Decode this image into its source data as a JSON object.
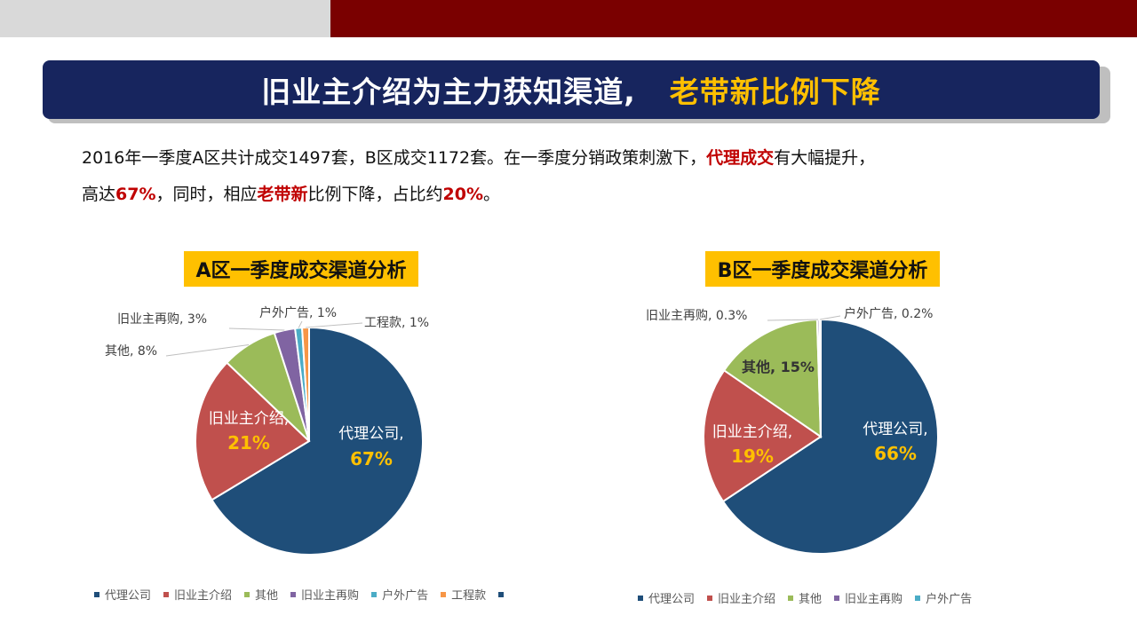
{
  "header": {
    "title_main": "旧业主介绍为主力获知渠道,",
    "title_accent": "老带新比例下降"
  },
  "intro": {
    "line1_pre": "2016年一季度A区共计成交1497套，B区成交1172套。在一季度分销政策刺激下，",
    "line1_hl": "代理成交",
    "line1_post": "有大幅提升，",
    "line2_a": "高达",
    "line2_hl1": "67%",
    "line2_b": "，同时，相应",
    "line2_hl2": "老带新",
    "line2_c": "比例下降，占比约",
    "line2_hl3": "20%",
    "line2_d": "。"
  },
  "colors": {
    "代理公司": "#1f4e79",
    "旧业主介绍": "#c0504d",
    "其他": "#9bbb59",
    "旧业主再购": "#8064a2",
    "户外广告": "#4bacc6",
    "工程款": "#f79646"
  },
  "chart_data": [
    {
      "type": "pie",
      "title": "A区一季度成交渠道分析",
      "slices": [
        {
          "name": "代理公司",
          "value": 67,
          "label_name": "代理公司,",
          "label_value": "67%"
        },
        {
          "name": "旧业主介绍",
          "value": 21,
          "label_name": "旧业主介绍,",
          "label_value": "21%"
        },
        {
          "name": "其他",
          "value": 8,
          "label": "其他, 8%"
        },
        {
          "name": "旧业主再购",
          "value": 3,
          "label": "旧业主再购, 3%"
        },
        {
          "name": "户外广告",
          "value": 1,
          "label": "户外广告, 1%"
        },
        {
          "name": "工程款",
          "value": 1,
          "label": "工程款, 1%"
        }
      ],
      "legend": [
        "代理公司",
        "旧业主介绍",
        "其他",
        "旧业主再购",
        "户外广告",
        "工程款",
        ""
      ]
    },
    {
      "type": "pie",
      "title": "B区一季度成交渠道分析",
      "slices": [
        {
          "name": "代理公司",
          "value": 66,
          "label_name": "代理公司,",
          "label_value": "66%"
        },
        {
          "name": "旧业主介绍",
          "value": 19,
          "label_name": "旧业主介绍,",
          "label_value": "19%"
        },
        {
          "name": "其他",
          "value": 15,
          "label": "其他, 15%"
        },
        {
          "name": "旧业主再购",
          "value": 0.3,
          "label": "旧业主再购, 0.3%"
        },
        {
          "name": "户外广告",
          "value": 0.2,
          "label": "户外广告, 0.2%"
        }
      ],
      "legend": [
        "代理公司",
        "旧业主介绍",
        "其他",
        "旧业主再购",
        "户外广告"
      ]
    }
  ]
}
